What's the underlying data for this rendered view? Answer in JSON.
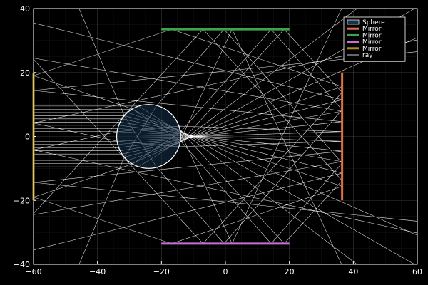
{
  "chart_data": {
    "type": "line",
    "title": "",
    "xlabel": "",
    "ylabel": "",
    "xlim": [
      -60,
      60
    ],
    "ylim": [
      -40,
      40
    ],
    "x_ticks": [
      -60,
      -40,
      -20,
      0,
      20,
      40,
      60
    ],
    "y_ticks": [
      -40,
      -20,
      0,
      20,
      40
    ],
    "x_tick_labels": [
      "−60",
      "−40",
      "−20",
      "0",
      "20",
      "40",
      "60"
    ],
    "y_tick_labels": [
      "−40",
      "−20",
      "0",
      "20",
      "40"
    ],
    "grid": true,
    "legend_position": "top-right",
    "background": "#000000",
    "foreground": "#ffffff",
    "sphere": {
      "name": "Sphere",
      "center": [
        -24,
        0
      ],
      "radius": 10,
      "fill": "#16324a",
      "stroke": "#ffffff"
    },
    "mirrors": [
      {
        "name": "Mirror",
        "color": "#e26f46",
        "x": [
          36.5,
          36.5
        ],
        "y": [
          -20,
          20
        ]
      },
      {
        "name": "Mirror",
        "color": "#3da44d",
        "x": [
          -20,
          20
        ],
        "y": [
          33.5,
          33.5
        ]
      },
      {
        "name": "Mirror",
        "color": "#c271d2",
        "x": [
          -20,
          20
        ],
        "y": [
          -33.5,
          -33.5
        ]
      },
      {
        "name": "Mirror",
        "color": "#ac8d18",
        "x": [
          -60,
          -60
        ],
        "y": [
          -20,
          20
        ]
      }
    ],
    "rays": {
      "name": "ray",
      "color": "#ffffff",
      "source_x": -60,
      "y_values": [
        -9.5,
        -8.5,
        -7.5,
        -6.5,
        -5.5,
        -4.5,
        -3.5,
        -2.5,
        -1.5,
        -0.5,
        0.5,
        1.5,
        2.5,
        3.5,
        4.5,
        5.5,
        6.5,
        7.5,
        8.5,
        9.5
      ]
    }
  }
}
